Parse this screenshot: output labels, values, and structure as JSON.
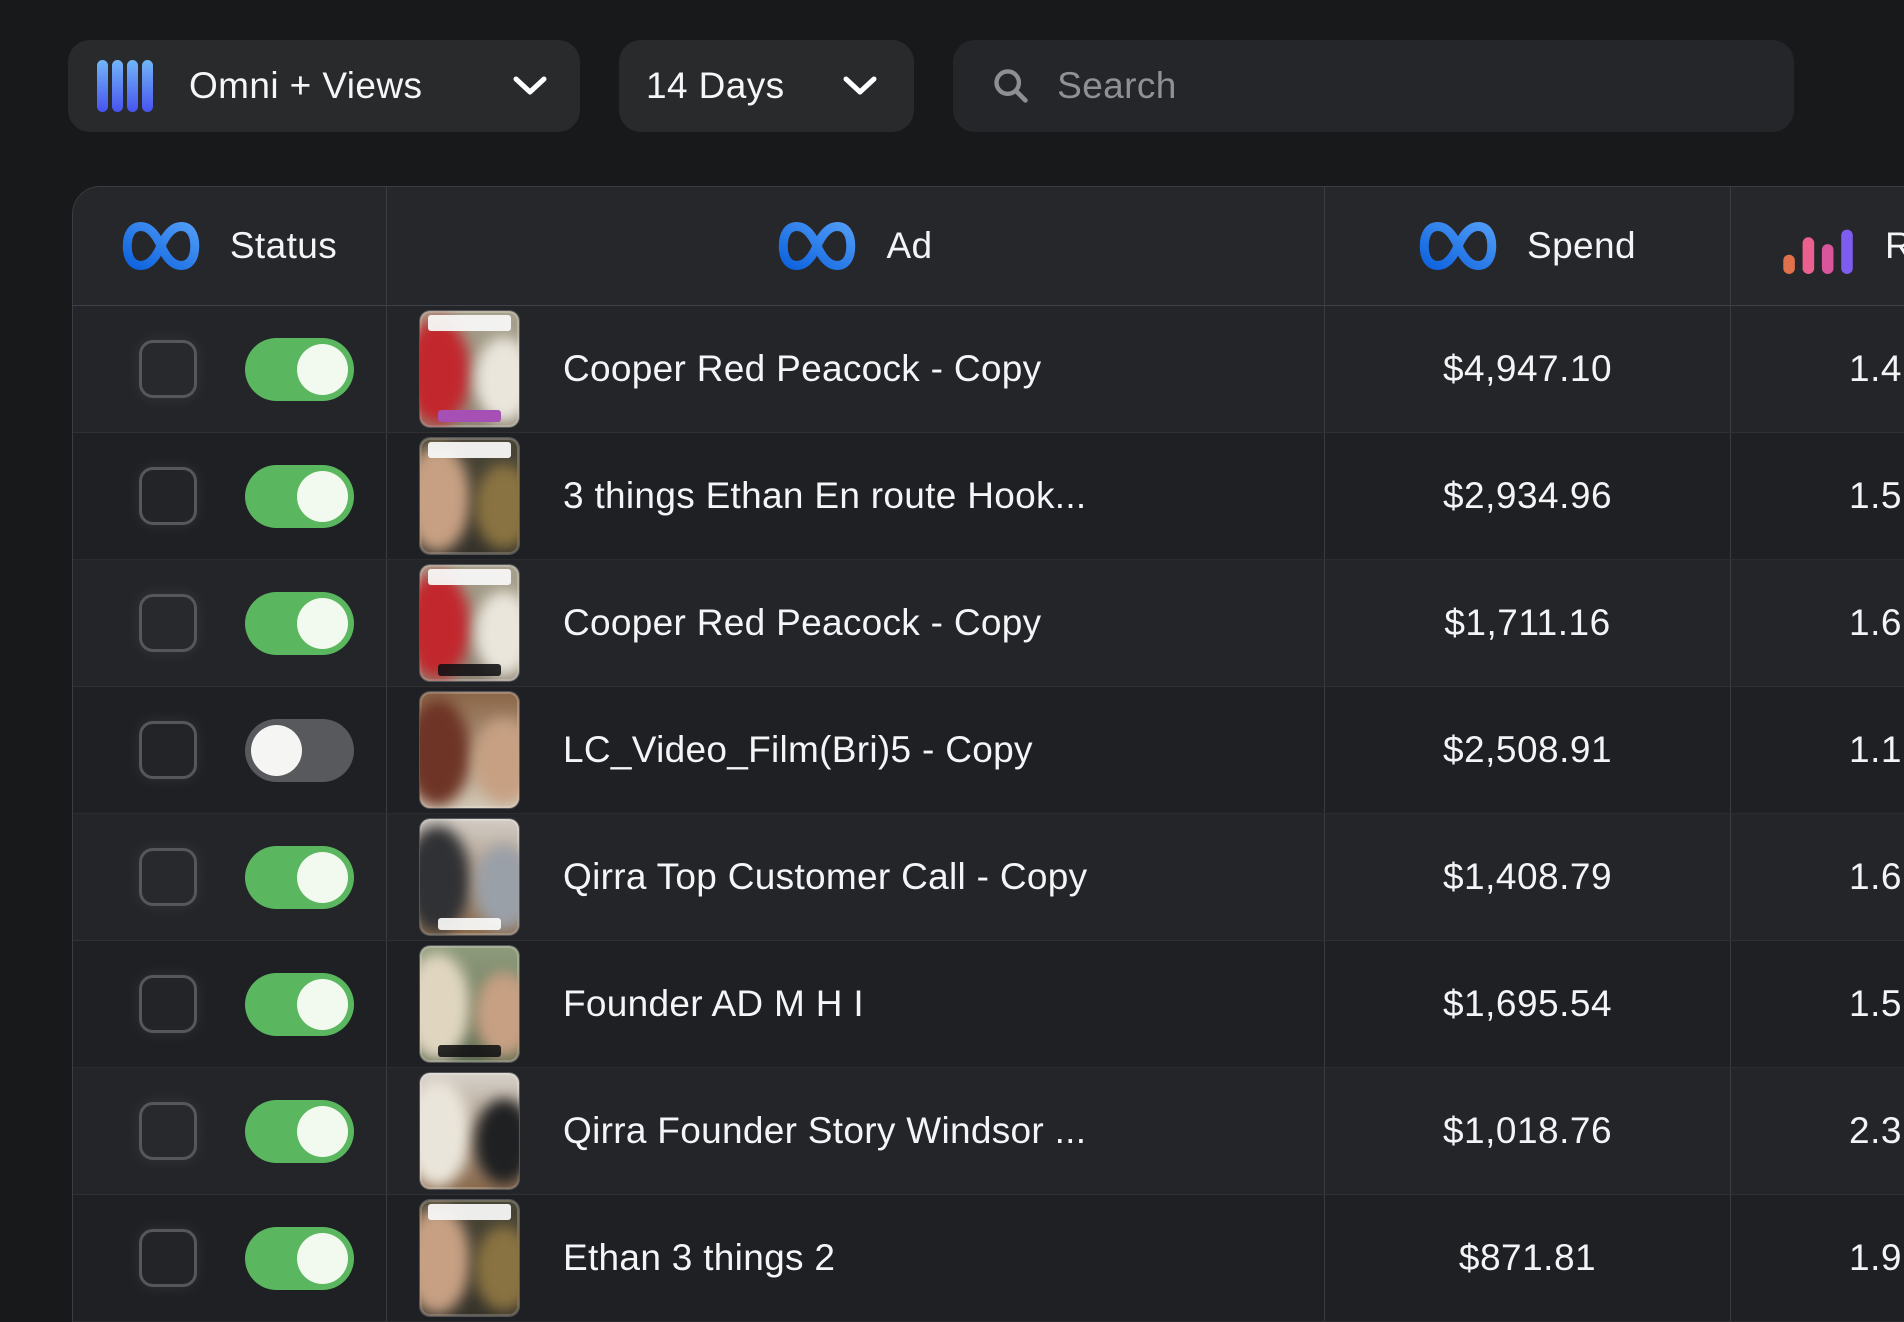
{
  "toolbar": {
    "view_button": {
      "label": "Omni + Views"
    },
    "range_button": {
      "label": "14 Days"
    },
    "search": {
      "placeholder": "Search"
    }
  },
  "colors": {
    "background": "#18191b",
    "control_background": "#292a2c",
    "row_odd": "#242528",
    "row_even": "#1f2023",
    "toggle_on_green": "#5bb75f",
    "toggle_off_gray": "#58595d",
    "meta_blue_start": "#0e63de",
    "meta_blue_end": "#4f9bf6",
    "omni_bar_top": "#72b6f8",
    "omni_bar_bottom": "#4753ef",
    "chart_bar_colors": [
      "#e0714d",
      "#ec6090",
      "#d9569c",
      "#7e5cf0"
    ]
  },
  "table": {
    "columns": [
      {
        "id": "status",
        "label": "Status",
        "icon": "meta-logo-icon"
      },
      {
        "id": "ad",
        "label": "Ad",
        "icon": "meta-logo-icon"
      },
      {
        "id": "spend",
        "label": "Spend",
        "icon": "meta-logo-icon"
      },
      {
        "id": "metric",
        "label": "R",
        "icon": "bar-chart-icon",
        "note": "label truncated at right screen edge"
      }
    ],
    "rows": [
      {
        "enabled": true,
        "checked": false,
        "name": "Cooper Red Peacock - Copy",
        "spend": "$4,947.10",
        "metric": "1.4",
        "thumb": {
          "top": "#a7a18c",
          "bottom": "#8f8575",
          "blob_left": "#c2272d",
          "blob_right": "#eae6dc",
          "cap_top": true,
          "cap_bottom": "purple"
        }
      },
      {
        "enabled": true,
        "checked": false,
        "name": "3 things Ethan En route Hook...",
        "spend": "$2,934.96",
        "metric": "1.5",
        "thumb": {
          "top": "#4a4636",
          "bottom": "#35322a",
          "blob_left": "#c7a083",
          "blob_right": "#8a7342",
          "cap_top": true,
          "cap_bottom": "none"
        }
      },
      {
        "enabled": true,
        "checked": false,
        "name": "Cooper Red Peacock - Copy",
        "spend": "$1,711.16",
        "metric": "1.6",
        "thumb": {
          "top": "#a7a18c",
          "bottom": "#8f8575",
          "blob_left": "#c2272d",
          "blob_right": "#eae6dc",
          "cap_top": true,
          "cap_bottom": "dark"
        }
      },
      {
        "enabled": false,
        "checked": false,
        "name": "LC_Video_Film(Bri)5 - Copy",
        "spend": "$2,508.91",
        "metric": "1.1",
        "thumb": {
          "top": "#8a6547",
          "bottom": "#d3c8b6",
          "blob_left": "#6e3526",
          "blob_right": "#c7a083",
          "cap_top": false,
          "cap_bottom": "none"
        }
      },
      {
        "enabled": true,
        "checked": false,
        "name": "Qirra Top Customer Call - Copy",
        "spend": "$1,408.79",
        "metric": "1.6",
        "thumb": {
          "top": "#d2ccc5",
          "bottom": "#8a6a4c",
          "blob_left": "#303134",
          "blob_right": "#9aa0a8",
          "cap_top": false,
          "cap_bottom": "white"
        }
      },
      {
        "enabled": true,
        "checked": false,
        "name": "Founder AD M H I",
        "spend": "$1,695.54",
        "metric": "1.5",
        "thumb": {
          "top": "#8e9b7c",
          "bottom": "#5f6a50",
          "blob_left": "#e0d6c0",
          "blob_right": "#c7a083",
          "cap_top": false,
          "cap_bottom": "dark"
        }
      },
      {
        "enabled": true,
        "checked": false,
        "name": "Qirra Founder Story Windsor ...",
        "spend": "$1,018.76",
        "metric": "2.3",
        "thumb": {
          "top": "#d6d1ca",
          "bottom": "#8a6a4c",
          "blob_left": "#eae5da",
          "blob_right": "#1f2022",
          "cap_top": false,
          "cap_bottom": "none"
        }
      },
      {
        "enabled": true,
        "checked": false,
        "name": "Ethan 3 things 2",
        "spend": "$871.81",
        "metric": "1.9",
        "thumb": {
          "top": "#4a4636",
          "bottom": "#35322a",
          "blob_left": "#c7a083",
          "blob_right": "#8a7342",
          "cap_top": true,
          "cap_bottom": "none"
        }
      }
    ]
  }
}
